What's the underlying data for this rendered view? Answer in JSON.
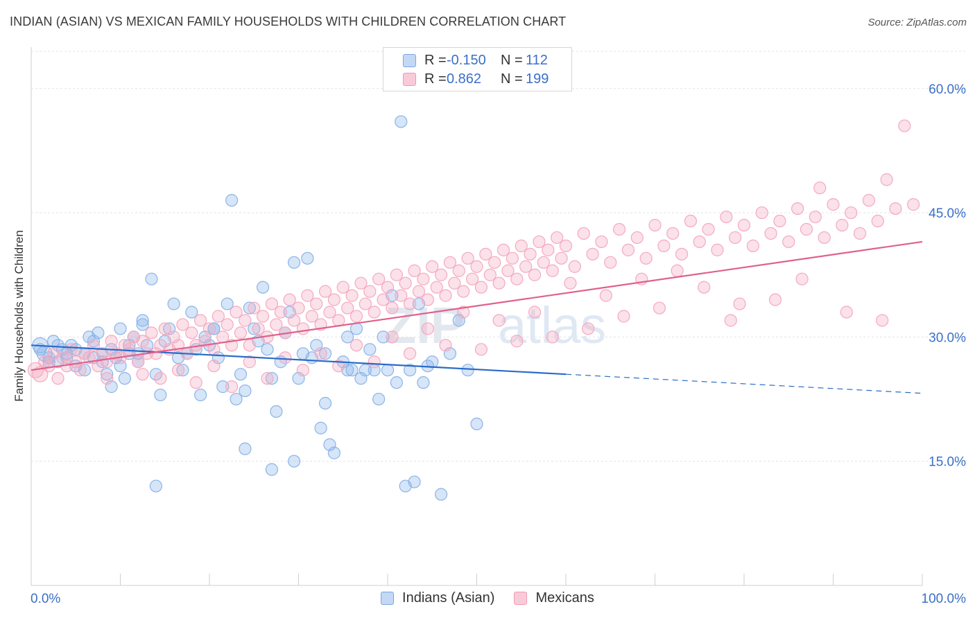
{
  "header": {
    "title": "INDIAN (ASIAN) VS MEXICAN FAMILY HOUSEHOLDS WITH CHILDREN CORRELATION CHART",
    "source": "Source: ZipAtlas.com"
  },
  "legend": {
    "rows": [
      {
        "r_label": "R =",
        "r_value": "-0.150",
        "n_label": "N =",
        "n_value": "112"
      },
      {
        "r_label": "R =",
        "r_value": "0.862",
        "n_label": "N =",
        "n_value": "199"
      }
    ]
  },
  "watermark": {
    "zip": "ZIP",
    "atlas": "atlas"
  },
  "chart_data": {
    "type": "scatter",
    "title": "INDIAN (ASIAN) VS MEXICAN FAMILY HOUSEHOLDS WITH CHILDREN CORRELATION CHART",
    "xlabel": "",
    "ylabel": "Family Households with Children",
    "xlim": [
      0,
      100
    ],
    "ylim": [
      0,
      65
    ],
    "x_tick_labels": [
      "0.0%",
      "100.0%"
    ],
    "y_ticks": [
      15,
      30,
      45,
      60
    ],
    "y_tick_labels": [
      "15.0%",
      "30.0%",
      "45.0%",
      "60.0%"
    ],
    "grid": true,
    "legend_position": "top-center",
    "series": [
      {
        "name": "Indians (Asian)",
        "color": "#8ab4e8",
        "line_color": "#2a6bc9",
        "r": -0.15,
        "n": 112,
        "trend": {
          "x0": 0,
          "y0": 29.0,
          "x1": 60,
          "y1": 25.5,
          "dash_to_x": 100,
          "dash_to_y": 23.2
        },
        "points": [
          [
            1,
            29
          ],
          [
            1.5,
            28
          ],
          [
            2,
            27.5
          ],
          [
            2.5,
            29.5
          ],
          [
            3,
            27
          ],
          [
            3.5,
            28.5
          ],
          [
            4,
            28
          ],
          [
            4.5,
            29
          ],
          [
            5,
            26.5
          ],
          [
            6,
            28
          ],
          [
            6.5,
            30
          ],
          [
            7,
            27.5
          ],
          [
            7.5,
            30.5
          ],
          [
            8,
            28
          ],
          [
            8.5,
            25.5
          ],
          [
            9,
            24
          ],
          [
            9.5,
            27.5
          ],
          [
            10,
            31
          ],
          [
            10.5,
            25
          ],
          [
            11,
            28
          ],
          [
            11.5,
            30
          ],
          [
            12,
            27
          ],
          [
            12.5,
            32
          ],
          [
            13,
            29
          ],
          [
            13.5,
            37
          ],
          [
            14,
            25.5
          ],
          [
            14.5,
            23
          ],
          [
            15,
            29.5
          ],
          [
            15.5,
            31
          ],
          [
            16,
            34
          ],
          [
            16.5,
            27.5
          ],
          [
            17,
            26
          ],
          [
            17.5,
            28
          ],
          [
            18,
            33
          ],
          [
            18.5,
            28.5
          ],
          [
            19,
            23
          ],
          [
            19.5,
            30
          ],
          [
            20,
            29
          ],
          [
            20.5,
            31
          ],
          [
            21,
            27.5
          ],
          [
            21.5,
            24
          ],
          [
            22,
            34
          ],
          [
            22.5,
            46.5
          ],
          [
            23,
            22.5
          ],
          [
            23.5,
            25.5
          ],
          [
            24,
            23.5
          ],
          [
            24.5,
            33.5
          ],
          [
            25,
            31
          ],
          [
            25.5,
            29.5
          ],
          [
            26,
            36
          ],
          [
            26.5,
            28.5
          ],
          [
            27,
            25
          ],
          [
            27.5,
            21
          ],
          [
            28,
            27
          ],
          [
            28.5,
            30.5
          ],
          [
            29,
            33
          ],
          [
            29.5,
            39
          ],
          [
            30,
            25
          ],
          [
            30.5,
            28
          ],
          [
            31,
            39.5
          ],
          [
            31.5,
            27.5
          ],
          [
            32,
            29
          ],
          [
            32.5,
            19
          ],
          [
            33,
            22
          ],
          [
            33.5,
            17
          ],
          [
            34,
            16
          ],
          [
            35,
            27
          ],
          [
            35.5,
            30
          ],
          [
            36,
            26
          ],
          [
            36.5,
            31
          ],
          [
            37,
            25
          ],
          [
            37.5,
            26
          ],
          [
            38,
            28.5
          ],
          [
            38.5,
            26
          ],
          [
            39,
            22.5
          ],
          [
            39.5,
            30
          ],
          [
            40,
            26
          ],
          [
            40.5,
            35
          ],
          [
            41,
            24.5
          ],
          [
            41.5,
            56
          ],
          [
            42,
            12
          ],
          [
            42.5,
            26
          ],
          [
            43,
            12.5
          ],
          [
            43.5,
            34
          ],
          [
            44,
            24.5
          ],
          [
            44.5,
            26.5
          ],
          [
            45,
            27
          ],
          [
            46,
            11
          ],
          [
            47,
            28
          ],
          [
            48,
            32
          ],
          [
            49,
            26
          ],
          [
            50,
            19.5
          ],
          [
            20.5,
            31
          ],
          [
            14,
            12
          ],
          [
            12.5,
            31.5
          ],
          [
            29.5,
            15
          ],
          [
            27,
            14
          ],
          [
            24,
            16.5
          ],
          [
            33,
            28
          ],
          [
            35.5,
            26
          ],
          [
            1,
            28.5
          ],
          [
            2,
            27
          ],
          [
            3,
            29
          ],
          [
            4,
            27.5
          ],
          [
            5,
            28.5
          ],
          [
            6,
            26
          ],
          [
            7,
            29.5
          ],
          [
            8,
            27
          ],
          [
            9,
            28.5
          ],
          [
            10,
            26.5
          ],
          [
            11,
            29
          ],
          [
            12,
            28
          ]
        ]
      },
      {
        "name": "Mexicans",
        "color": "#f4a9c0",
        "line_color": "#e0608a",
        "r": 0.862,
        "n": 199,
        "trend": {
          "x0": 0,
          "y0": 26.0,
          "x1": 100,
          "y1": 41.5
        },
        "points": [
          [
            0.5,
            26
          ],
          [
            1,
            25.5
          ],
          [
            1.5,
            27
          ],
          [
            2,
            26.5
          ],
          [
            2.5,
            28
          ],
          [
            3,
            25
          ],
          [
            3.5,
            27.5
          ],
          [
            4,
            26.5
          ],
          [
            4.5,
            28.5
          ],
          [
            5,
            27
          ],
          [
            5.5,
            26
          ],
          [
            6,
            28
          ],
          [
            6.5,
            27.5
          ],
          [
            7,
            29
          ],
          [
            7.5,
            26.5
          ],
          [
            8,
            28
          ],
          [
            8.5,
            27
          ],
          [
            9,
            29.5
          ],
          [
            9.5,
            28
          ],
          [
            10,
            27.5
          ],
          [
            10.5,
            29
          ],
          [
            11,
            28.5
          ],
          [
            11.5,
            30
          ],
          [
            12,
            27
          ],
          [
            12.5,
            29.5
          ],
          [
            13,
            28
          ],
          [
            13.5,
            30.5
          ],
          [
            14,
            28
          ],
          [
            14.5,
            29
          ],
          [
            15,
            31
          ],
          [
            15.5,
            28.5
          ],
          [
            16,
            30
          ],
          [
            16.5,
            29
          ],
          [
            17,
            31.5
          ],
          [
            17.5,
            28
          ],
          [
            18,
            30.5
          ],
          [
            18.5,
            29
          ],
          [
            19,
            32
          ],
          [
            19.5,
            29.5
          ],
          [
            20,
            31
          ],
          [
            20.5,
            28.5
          ],
          [
            21,
            32.5
          ],
          [
            21.5,
            30
          ],
          [
            22,
            31.5
          ],
          [
            22.5,
            29
          ],
          [
            23,
            33
          ],
          [
            23.5,
            30.5
          ],
          [
            24,
            32
          ],
          [
            24.5,
            29
          ],
          [
            25,
            33.5
          ],
          [
            25.5,
            31
          ],
          [
            26,
            32.5
          ],
          [
            26.5,
            30
          ],
          [
            27,
            34
          ],
          [
            27.5,
            31.5
          ],
          [
            28,
            33
          ],
          [
            28.5,
            30.5
          ],
          [
            29,
            34.5
          ],
          [
            29.5,
            32
          ],
          [
            30,
            33.5
          ],
          [
            30.5,
            31
          ],
          [
            31,
            35
          ],
          [
            31.5,
            32.5
          ],
          [
            32,
            34
          ],
          [
            32.5,
            31.5
          ],
          [
            33,
            35.5
          ],
          [
            33.5,
            33
          ],
          [
            34,
            34.5
          ],
          [
            34.5,
            32
          ],
          [
            35,
            36
          ],
          [
            35.5,
            33.5
          ],
          [
            36,
            35
          ],
          [
            36.5,
            32.5
          ],
          [
            37,
            36.5
          ],
          [
            37.5,
            34
          ],
          [
            38,
            35.5
          ],
          [
            38.5,
            33
          ],
          [
            39,
            37
          ],
          [
            39.5,
            34.5
          ],
          [
            40,
            36
          ],
          [
            40.5,
            33.5
          ],
          [
            41,
            37.5
          ],
          [
            41.5,
            35
          ],
          [
            42,
            36.5
          ],
          [
            42.5,
            34
          ],
          [
            43,
            38
          ],
          [
            43.5,
            35.5
          ],
          [
            44,
            37
          ],
          [
            44.5,
            34.5
          ],
          [
            45,
            38.5
          ],
          [
            45.5,
            36
          ],
          [
            46,
            37.5
          ],
          [
            46.5,
            35
          ],
          [
            47,
            39
          ],
          [
            47.5,
            36.5
          ],
          [
            48,
            38
          ],
          [
            48.5,
            35.5
          ],
          [
            49,
            39.5
          ],
          [
            49.5,
            37
          ],
          [
            50,
            38.5
          ],
          [
            50.5,
            36
          ],
          [
            51,
            40
          ],
          [
            51.5,
            37.5
          ],
          [
            52,
            39
          ],
          [
            52.5,
            36.5
          ],
          [
            53,
            40.5
          ],
          [
            53.5,
            38
          ],
          [
            54,
            39.5
          ],
          [
            54.5,
            37
          ],
          [
            55,
            41
          ],
          [
            55.5,
            38.5
          ],
          [
            56,
            40
          ],
          [
            56.5,
            37.5
          ],
          [
            57,
            41.5
          ],
          [
            57.5,
            39
          ],
          [
            58,
            40.5
          ],
          [
            58.5,
            38
          ],
          [
            59,
            42
          ],
          [
            59.5,
            39.5
          ],
          [
            60,
            41
          ],
          [
            61,
            38.5
          ],
          [
            62,
            42.5
          ],
          [
            63,
            40
          ],
          [
            64,
            41.5
          ],
          [
            65,
            39
          ],
          [
            66,
            43
          ],
          [
            67,
            40.5
          ],
          [
            68,
            42
          ],
          [
            69,
            39.5
          ],
          [
            70,
            43.5
          ],
          [
            71,
            41
          ],
          [
            72,
            42.5
          ],
          [
            73,
            40
          ],
          [
            74,
            44
          ],
          [
            75,
            41.5
          ],
          [
            76,
            43
          ],
          [
            77,
            40.5
          ],
          [
            78,
            44.5
          ],
          [
            79,
            42
          ],
          [
            80,
            43.5
          ],
          [
            81,
            41
          ],
          [
            82,
            45
          ],
          [
            83,
            42.5
          ],
          [
            84,
            44
          ],
          [
            85,
            41.5
          ],
          [
            86,
            45.5
          ],
          [
            87,
            43
          ],
          [
            88,
            44.5
          ],
          [
            89,
            42
          ],
          [
            90,
            46
          ],
          [
            91,
            43.5
          ],
          [
            92,
            45
          ],
          [
            93,
            42.5
          ],
          [
            94,
            46.5
          ],
          [
            95,
            44
          ],
          [
            96,
            49
          ],
          [
            97,
            45.5
          ],
          [
            98,
            55.5
          ],
          [
            99,
            46
          ],
          [
            88.5,
            48
          ],
          [
            86.5,
            37
          ],
          [
            79.5,
            34
          ],
          [
            75.5,
            36
          ],
          [
            72.5,
            38
          ],
          [
            68.5,
            37
          ],
          [
            64.5,
            35
          ],
          [
            60.5,
            36.5
          ],
          [
            56.5,
            33
          ],
          [
            52.5,
            32
          ],
          [
            48.5,
            33
          ],
          [
            44.5,
            31
          ],
          [
            40.5,
            30
          ],
          [
            36.5,
            29
          ],
          [
            32.5,
            28
          ],
          [
            28.5,
            27.5
          ],
          [
            24.5,
            27
          ],
          [
            20.5,
            26.5
          ],
          [
            16.5,
            26
          ],
          [
            12.5,
            25.5
          ],
          [
            8.5,
            25
          ],
          [
            95.5,
            32
          ],
          [
            91.5,
            33
          ],
          [
            83.5,
            34.5
          ],
          [
            78.5,
            32
          ],
          [
            70.5,
            33.5
          ],
          [
            66.5,
            32.5
          ],
          [
            62.5,
            31
          ],
          [
            58.5,
            30
          ],
          [
            54.5,
            29.5
          ],
          [
            50.5,
            28.5
          ],
          [
            46.5,
            29
          ],
          [
            42.5,
            28
          ],
          [
            38.5,
            27
          ],
          [
            34.5,
            26.5
          ],
          [
            30.5,
            26
          ],
          [
            26.5,
            25
          ],
          [
            22.5,
            24
          ],
          [
            18.5,
            24.5
          ],
          [
            14.5,
            25
          ]
        ]
      }
    ]
  }
}
